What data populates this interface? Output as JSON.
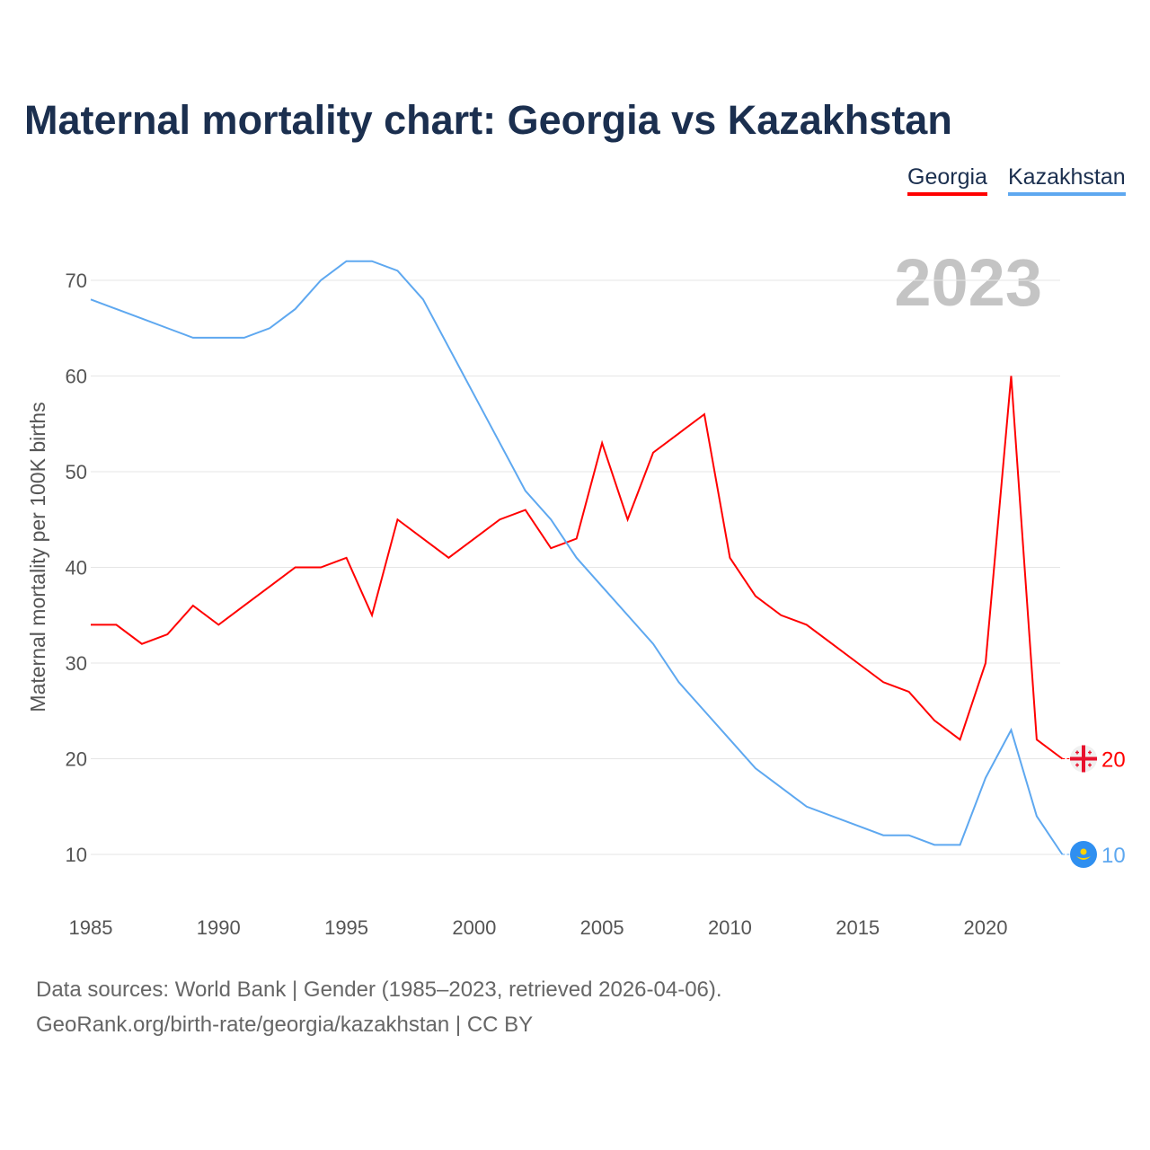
{
  "chart_data": {
    "type": "line",
    "title": "Maternal mortality chart: Georgia vs Kazakhstan",
    "ylabel": "Maternal mortality per 100K births",
    "xlabel": "",
    "year_label": "2023",
    "ylim": [
      5,
      75
    ],
    "xlim": [
      1985,
      2023
    ],
    "yticks": [
      10,
      20,
      30,
      40,
      50,
      60,
      70
    ],
    "xticks": [
      1985,
      1990,
      1995,
      2000,
      2005,
      2010,
      2015,
      2020
    ],
    "legend_placement": "top-right",
    "x": [
      1985,
      1986,
      1987,
      1988,
      1989,
      1990,
      1991,
      1992,
      1993,
      1994,
      1995,
      1996,
      1997,
      1998,
      1999,
      2000,
      2001,
      2002,
      2003,
      2004,
      2005,
      2006,
      2007,
      2008,
      2009,
      2010,
      2011,
      2012,
      2013,
      2014,
      2015,
      2016,
      2017,
      2018,
      2019,
      2020,
      2021,
      2022,
      2023
    ],
    "series": [
      {
        "name": "Georgia",
        "color": "#ff0000",
        "end_label": "20",
        "values": [
          34,
          34,
          32,
          33,
          36,
          34,
          36,
          38,
          40,
          40,
          41,
          35,
          45,
          43,
          41,
          43,
          45,
          46,
          42,
          43,
          53,
          45,
          52,
          54,
          56,
          41,
          37,
          35,
          34,
          32,
          30,
          28,
          27,
          24,
          22,
          30,
          60,
          22,
          20
        ]
      },
      {
        "name": "Kazakhstan",
        "color": "#5ea8f0",
        "end_label": "10",
        "values": [
          68,
          67,
          66,
          65,
          64,
          64,
          64,
          65,
          67,
          70,
          72,
          72,
          71,
          68,
          63,
          58,
          53,
          48,
          45,
          41,
          38,
          35,
          32,
          28,
          25,
          22,
          19,
          17,
          15,
          14,
          13,
          12,
          12,
          11,
          11,
          18,
          23,
          14,
          10
        ]
      }
    ]
  },
  "footer": {
    "source": "Data sources: World Bank | Gender (1985–2023, retrieved 2026-04-06).",
    "url": "GeoRank.org/birth-rate/georgia/kazakhstan | CC BY"
  }
}
